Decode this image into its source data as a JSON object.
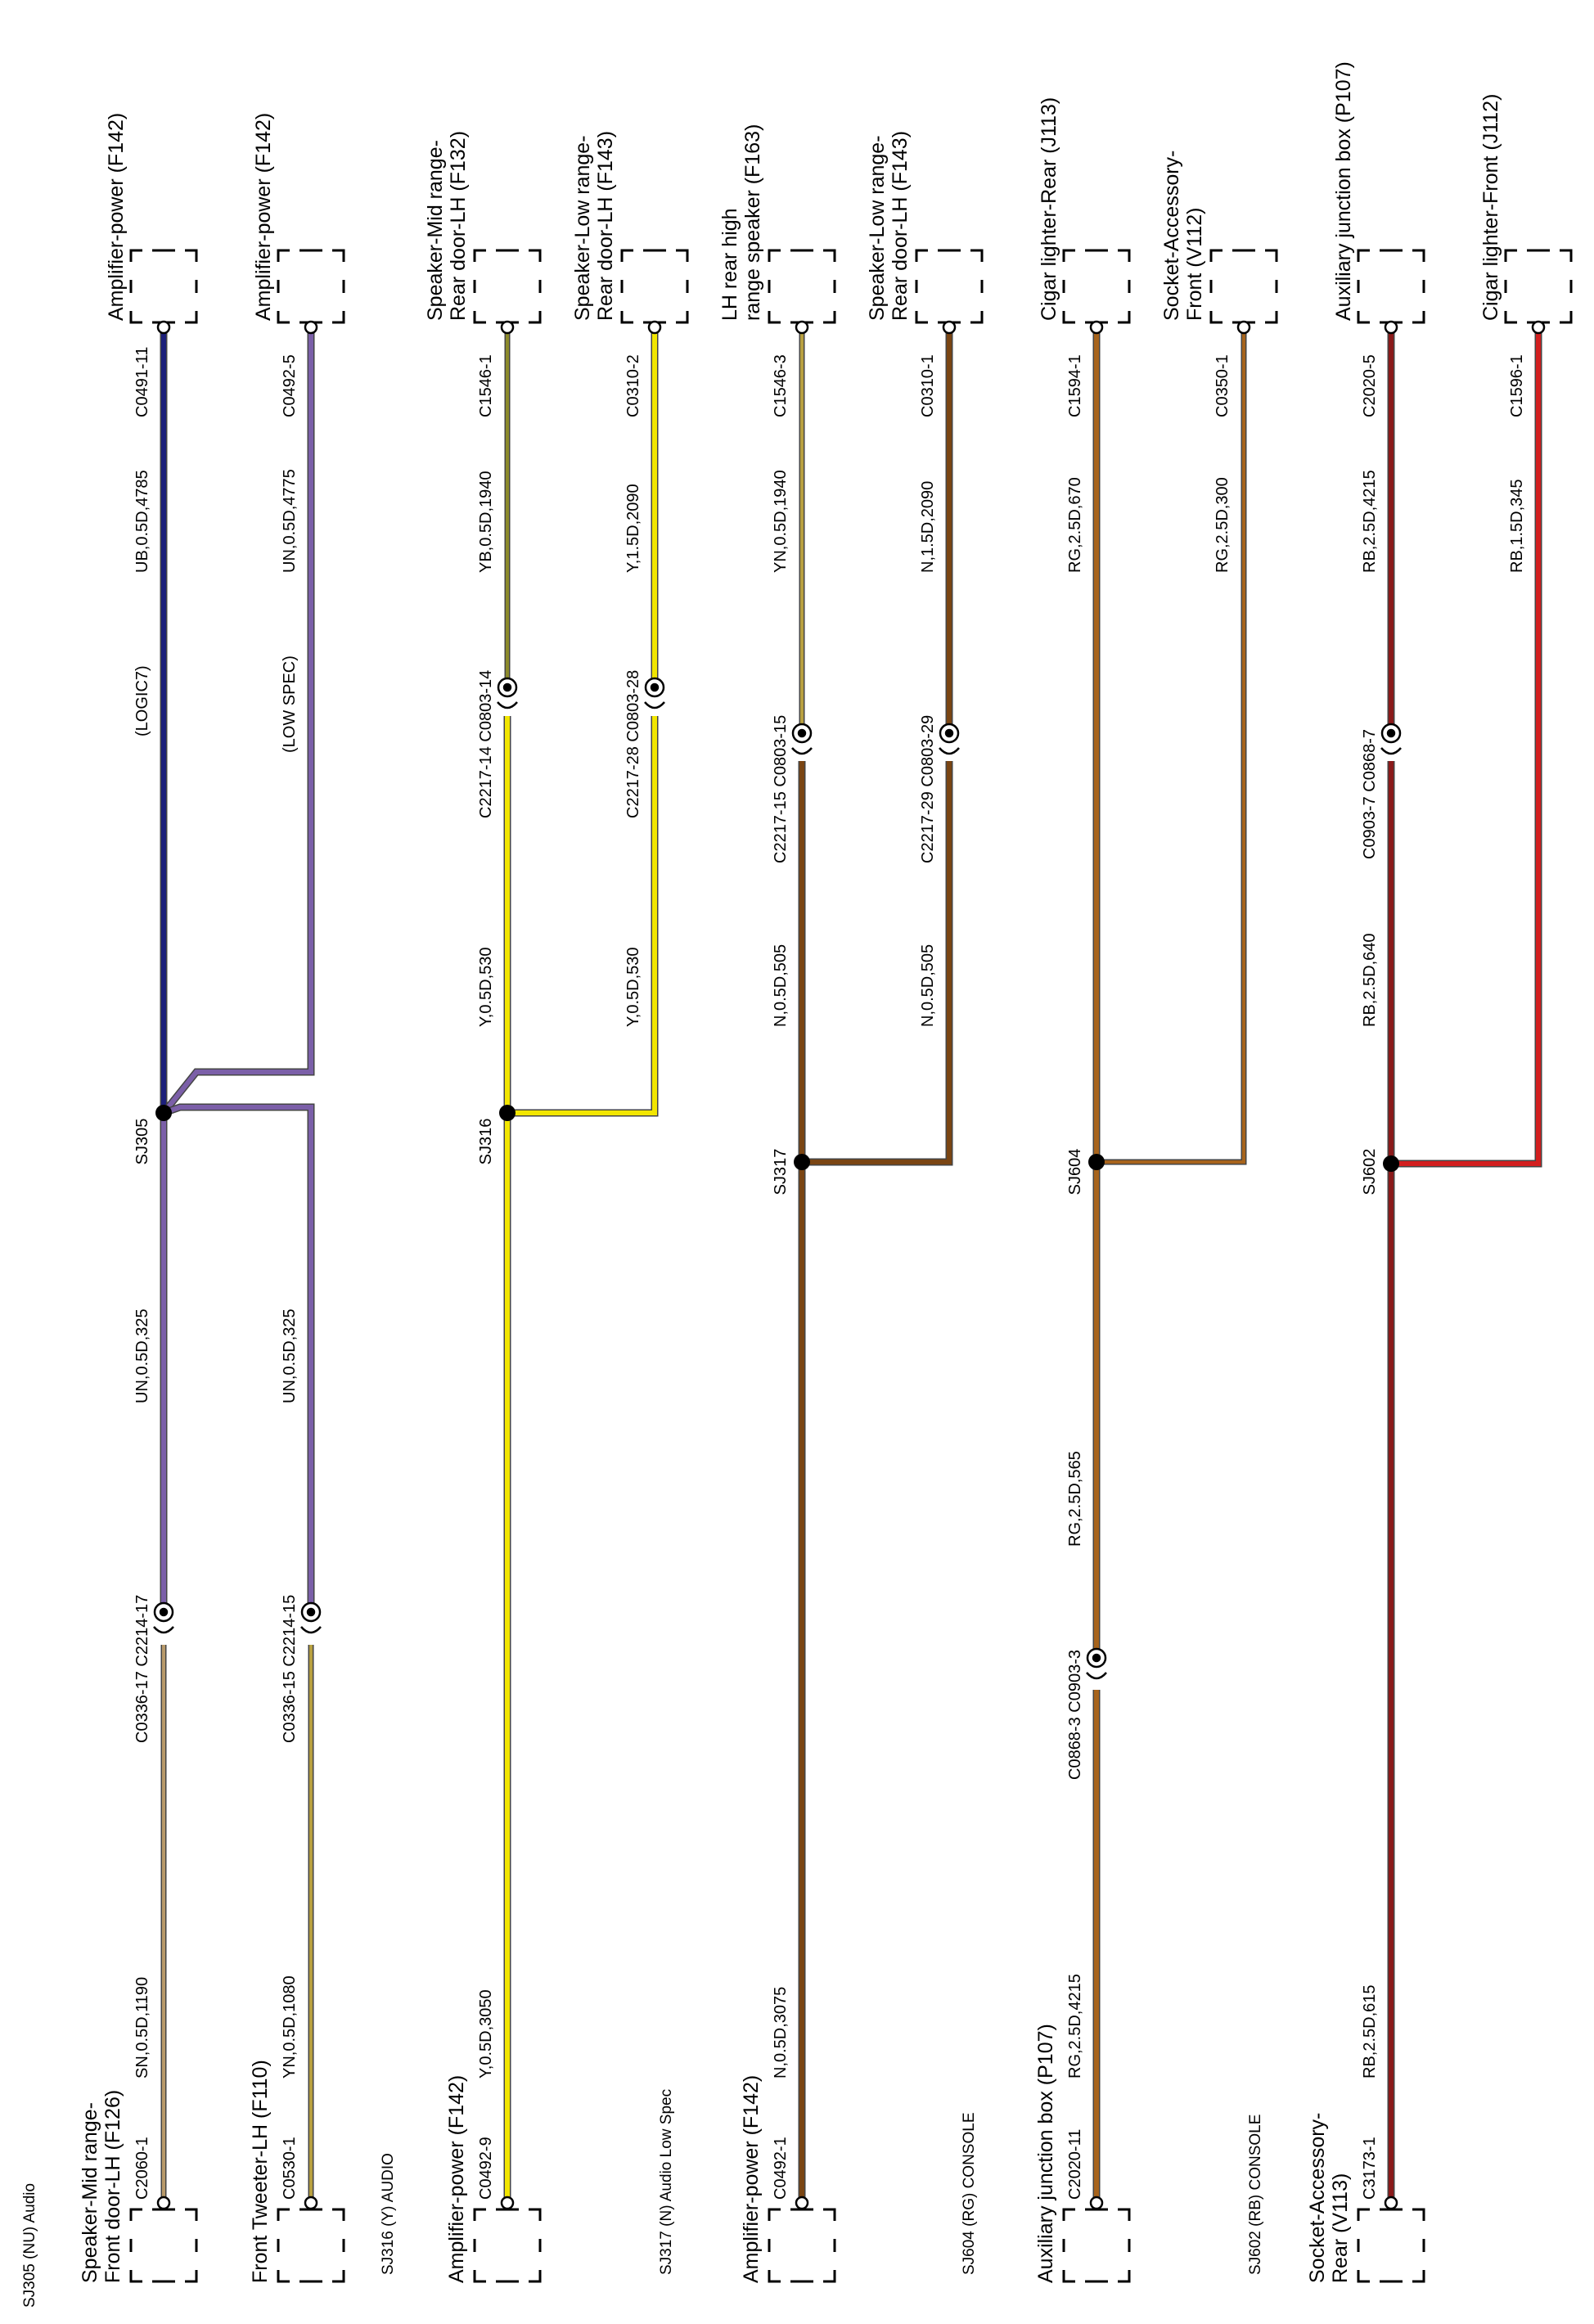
{
  "colors": {
    "UB": "#1c1f7a",
    "UN": "#7b5fa8",
    "SN": "#b89a6a",
    "YN": "#b8a040",
    "YB": "#8c8a2a",
    "Y": "#f2e600",
    "N": "#7a4513",
    "RG": "#a7641c",
    "RB": "#8a1a1a",
    "R": "#d21f1f",
    "edge": "#444444",
    "black": "#000000"
  },
  "groups": [
    {
      "id": "sj305",
      "label": "SJ305 (NU) Audio"
    },
    {
      "id": "sj316",
      "label": "SJ316 (Y) AUDIO"
    },
    {
      "id": "sj317",
      "label": "SJ317 (N) Audio Low Spec"
    },
    {
      "id": "sj604",
      "label": "SJ604 (RG)  CONSOLE"
    },
    {
      "id": "sj602",
      "label": "SJ602 (RB)  CONSOLE"
    }
  ],
  "splices": [
    {
      "id": "sj305",
      "label": "SJ305"
    },
    {
      "id": "sj316",
      "label": "SJ316"
    },
    {
      "id": "sj317",
      "label": "SJ317"
    },
    {
      "id": "sj604",
      "label": "SJ604"
    },
    {
      "id": "sj602",
      "label": "SJ602"
    }
  ],
  "top_components": [
    {
      "id": "c1",
      "lines": [
        "Amplifier-power (F142)"
      ],
      "pin": "C0491-11"
    },
    {
      "id": "c2",
      "lines": [
        "Amplifier-power (F142)"
      ],
      "pin": "C0492-5"
    },
    {
      "id": "c3",
      "lines": [
        "Speaker-Mid range-",
        "Rear door-LH (F132)"
      ],
      "pin": "C1546-1"
    },
    {
      "id": "c4",
      "lines": [
        "Speaker-Low range-",
        "Rear door-LH (F143)"
      ],
      "pin": "C0310-2"
    },
    {
      "id": "c5",
      "lines": [
        "LH rear high",
        "range speaker (F163)"
      ],
      "pin": "C1546-3"
    },
    {
      "id": "c6",
      "lines": [
        "Speaker-Low range-",
        "Rear door-LH (F143)"
      ],
      "pin": "C0310-1"
    },
    {
      "id": "c7",
      "lines": [
        "Cigar lighter-Rear (J113)"
      ],
      "pin": "C1594-1"
    },
    {
      "id": "c8",
      "lines": [
        "Socket-Accessory-",
        "Front (V112)"
      ],
      "pin": "C0350-1"
    },
    {
      "id": "c9",
      "lines": [
        "Auxiliary junction box (P107)"
      ],
      "pin": "C2020-5"
    },
    {
      "id": "c10",
      "lines": [
        "Cigar lighter-Front (J112)"
      ],
      "pin": "C1596-1"
    }
  ],
  "bottom_components": [
    {
      "id": "b1",
      "lines": [
        "Speaker-Mid range-",
        "Front door-LH (F126)"
      ],
      "pin": "C2060-1"
    },
    {
      "id": "b2",
      "lines": [
        "Front Tweeter-LH (F110)"
      ],
      "pin": "C0530-1"
    },
    {
      "id": "b3",
      "lines": [
        "Amplifier-power (F142)"
      ],
      "pin": "C0492-9"
    },
    {
      "id": "b4",
      "lines": [
        "Amplifier-power (F142)"
      ],
      "pin": "C0492-1"
    },
    {
      "id": "b5",
      "lines": [
        "Auxiliary junction box (P107)"
      ],
      "pin": "C2020-11"
    },
    {
      "id": "b6",
      "lines": [
        "Socket-Accessory-",
        "Rear (V113)"
      ],
      "pin": "C3173-1"
    }
  ],
  "wire_labels": [
    {
      "id": "w1",
      "text": "UB,0.5D,4785"
    },
    {
      "id": "w2",
      "text": "UN,0.5D,4775"
    },
    {
      "id": "w3",
      "text": "YB,0.5D,1940"
    },
    {
      "id": "w4",
      "text": "Y,1.5D,2090"
    },
    {
      "id": "w5",
      "text": "YN,0.5D,1940"
    },
    {
      "id": "w6",
      "text": "N,1.5D,2090"
    },
    {
      "id": "w7",
      "text": "RG,2.5D,670"
    },
    {
      "id": "w8",
      "text": "RG,2.5D,300"
    },
    {
      "id": "w9",
      "text": "RB,2.5D,4215"
    },
    {
      "id": "w10",
      "text": "RB,1.5D,345"
    },
    {
      "id": "w11",
      "text": "Y,0.5D,530"
    },
    {
      "id": "w12",
      "text": "Y,0.5D,530"
    },
    {
      "id": "w13",
      "text": "N,0.5D,505"
    },
    {
      "id": "w14",
      "text": "N,0.5D,505"
    },
    {
      "id": "w15",
      "text": "RB,2.5D,640"
    },
    {
      "id": "w16",
      "text": "UN,0.5D,325"
    },
    {
      "id": "w17",
      "text": "UN,0.5D,325"
    },
    {
      "id": "w18",
      "text": "RG,2.5D,565"
    },
    {
      "id": "w19",
      "text": "SN,0.5D,1190"
    },
    {
      "id": "w20",
      "text": "YN,0.5D,1080"
    },
    {
      "id": "w21",
      "text": "Y,0.5D,3050"
    },
    {
      "id": "w22",
      "text": "N,0.5D,3075"
    },
    {
      "id": "w23",
      "text": "RG,2.5D,4215"
    },
    {
      "id": "w24",
      "text": "RB,2.5D,615"
    }
  ],
  "notes": [
    {
      "id": "n1",
      "text": "(LOGIC7)"
    },
    {
      "id": "n2",
      "text": "(LOW SPEC)"
    }
  ],
  "inline_connectors": [
    {
      "id": "k1",
      "text": "C2217-14  C0803-14"
    },
    {
      "id": "k2",
      "text": "C2217-28  C0803-28"
    },
    {
      "id": "k3",
      "text": "C2217-15  C0803-15"
    },
    {
      "id": "k4",
      "text": "C2217-29  C0803-29"
    },
    {
      "id": "k5",
      "text": "C0903-7  C0868-7"
    },
    {
      "id": "k6",
      "text": "C0336-17  C2214-17"
    },
    {
      "id": "k7",
      "text": "C0336-15  C2214-15"
    },
    {
      "id": "k8",
      "text": "C0868-3  C0903-3"
    }
  ]
}
